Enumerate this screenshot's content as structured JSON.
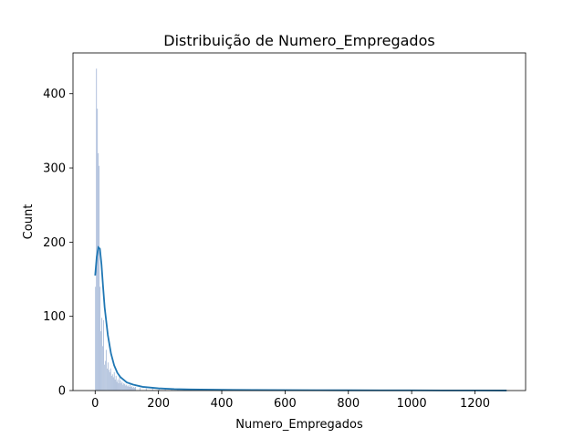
{
  "chart_data": {
    "type": "bar",
    "title": "Distribuição de Numero_Empregados",
    "xlabel": "Numero_Empregados",
    "ylabel": "Count",
    "xlim": [
      -70,
      1360
    ],
    "ylim": [
      0,
      455
    ],
    "xticks": [
      0,
      200,
      400,
      600,
      800,
      1000,
      1200
    ],
    "yticks": [
      0,
      100,
      200,
      300,
      400
    ],
    "bin_width": 2.8,
    "bar_color": "#4c72b0",
    "bar_alpha": 0.55,
    "kde_color": "#1f77b4",
    "grid": false,
    "histogram": {
      "bin_starts": [
        0,
        2.8,
        5.6,
        8.4,
        11.2,
        14,
        16.8,
        19.6,
        22.4,
        25.2,
        28,
        30.8,
        33.6,
        36.4,
        39.2,
        42,
        44.8,
        47.6,
        50.4,
        53.2,
        56,
        58.8,
        61.6,
        64.4,
        67.2,
        70,
        72.8,
        75.6,
        78.4,
        81.2,
        84,
        86.8,
        89.6,
        92.4,
        95.2,
        98,
        100.8,
        103.6,
        106.4,
        109.2,
        112,
        114.8,
        117.6,
        120.4,
        123.2,
        126,
        140,
        160,
        180,
        200,
        220,
        240,
        260,
        300,
        350,
        400,
        500,
        600,
        700,
        800,
        900,
        1000,
        1100,
        1200,
        1296
      ],
      "counts": [
        140,
        434,
        380,
        320,
        303,
        140,
        80,
        98,
        60,
        95,
        35,
        40,
        55,
        30,
        38,
        28,
        25,
        30,
        20,
        22,
        18,
        25,
        15,
        20,
        12,
        15,
        10,
        18,
        14,
        10,
        12,
        8,
        10,
        9,
        7,
        8,
        6,
        7,
        5,
        8,
        5,
        6,
        4,
        5,
        4,
        5,
        4,
        3,
        3,
        3,
        2,
        2,
        2,
        2,
        1,
        1,
        1,
        1,
        1,
        1,
        1,
        1,
        1,
        1,
        1
      ]
    },
    "kde": {
      "x": [
        0,
        5,
        10,
        15,
        20,
        25,
        30,
        40,
        50,
        60,
        70,
        80,
        100,
        120,
        150,
        200,
        250,
        300,
        400,
        500,
        600,
        700,
        800,
        900,
        1000,
        1100,
        1200,
        1300
      ],
      "y": [
        155,
        180,
        193,
        191,
        170,
        140,
        112,
        75,
        50,
        34,
        24,
        18,
        11,
        8,
        5,
        3,
        2,
        1.5,
        1,
        0.8,
        0.6,
        0.5,
        0.4,
        0.3,
        0.3,
        0.2,
        0.2,
        0.1
      ]
    }
  }
}
